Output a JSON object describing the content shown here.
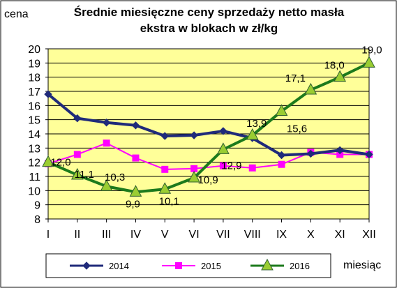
{
  "chart_data": {
    "type": "line",
    "title_line1": "Średnie miesięczne ceny sprzedaży netto masła",
    "title_line2": "ekstra w blokach w zł/kg",
    "ylabel": "cena",
    "xlabel": "miesiąc",
    "categories": [
      "I",
      "II",
      "III",
      "IV",
      "V",
      "VI",
      "VII",
      "VIII",
      "IX",
      "X",
      "XI",
      "XII"
    ],
    "ylim": [
      8,
      20
    ],
    "yticks": [
      "8",
      "9",
      "10",
      "11",
      "12",
      "13",
      "14",
      "15",
      "16",
      "17",
      "18",
      "19",
      "20"
    ],
    "grid": true,
    "legend_position": "bottom",
    "series": [
      {
        "name": "2014",
        "color": "#1F2A7A",
        "marker": "diamond",
        "values": [
          16.8,
          15.1,
          14.8,
          14.6,
          13.85,
          13.9,
          14.2,
          13.7,
          12.5,
          12.6,
          12.85,
          12.55
        ]
      },
      {
        "name": "2015",
        "color": "#FF00FF",
        "marker": "square",
        "values": [
          11.9,
          12.55,
          13.35,
          12.3,
          11.5,
          11.55,
          11.75,
          11.6,
          11.85,
          12.7,
          12.55,
          12.55
        ]
      },
      {
        "name": "2016",
        "color": "#1C7A1C",
        "marker": "triangle",
        "values": [
          12.0,
          11.1,
          10.3,
          9.9,
          10.1,
          10.9,
          12.9,
          13.9,
          15.6,
          17.1,
          18.0,
          19.0
        ],
        "labels": [
          "12,0",
          "11,1",
          "10,3",
          "9,9",
          "10,1",
          "10,9",
          "12,9",
          "13,9",
          "15,6",
          "17,1",
          "18,0",
          "19,0"
        ]
      }
    ],
    "colors": {
      "plot_background": "#FFFF99",
      "grid": "#000000"
    }
  }
}
